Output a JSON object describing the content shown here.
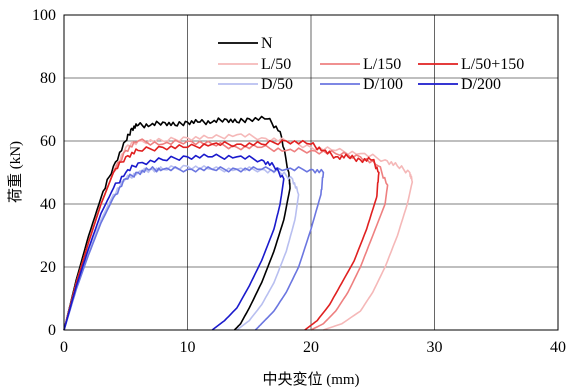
{
  "chart_data": {
    "type": "line",
    "xlabel": "中央変位 (mm)",
    "ylabel": "荷重 (kN)",
    "xlim": [
      0,
      40
    ],
    "ylim": [
      0,
      100
    ],
    "xticks": [
      0,
      10,
      20,
      30,
      40
    ],
    "yticks": [
      0,
      20,
      40,
      60,
      80,
      100
    ],
    "grid": true,
    "legend_position": "top-right",
    "series": [
      {
        "name": "N",
        "color": "#000000",
        "x": [
          0,
          1,
          2,
          3,
          4,
          5,
          5.5,
          6,
          7,
          8,
          9,
          10,
          11,
          12,
          13,
          14,
          15,
          16.5,
          17.5,
          18.2,
          18.3,
          17.8,
          17.0,
          16.0,
          15.0,
          14.3,
          13.8
        ],
        "y": [
          0,
          16,
          30,
          42,
          52,
          60,
          64,
          65,
          65,
          66,
          65,
          66,
          66,
          66,
          67,
          66,
          67,
          67,
          63,
          50,
          45,
          35,
          25,
          15,
          7,
          2,
          0
        ]
      },
      {
        "name": "L/50",
        "color": "#f5b8b8",
        "x": [
          0,
          1,
          2,
          3,
          4,
          5,
          6,
          8,
          10,
          12,
          14,
          16,
          18,
          20,
          22,
          24,
          26,
          27,
          28,
          28.2,
          27.8,
          27.0,
          26.0,
          25.0,
          24.0,
          22.5,
          21.0
        ],
        "y": [
          0,
          15,
          28,
          40,
          50,
          58,
          60,
          60,
          61,
          61,
          62,
          61,
          60,
          58,
          57,
          56,
          54,
          52,
          50,
          47,
          40,
          30,
          20,
          12,
          6,
          2,
          0
        ]
      },
      {
        "name": "L/150",
        "color": "#ee8080",
        "x": [
          0,
          1,
          2,
          3,
          4,
          5,
          6,
          8,
          10,
          12,
          14,
          16,
          18,
          20,
          22,
          24,
          25.5,
          26.2,
          26.0,
          25.0,
          24.0,
          23.0,
          22.0,
          21.0,
          20.0
        ],
        "y": [
          0,
          15,
          28,
          40,
          50,
          57,
          60,
          59,
          60,
          59,
          58,
          58,
          57,
          57,
          56,
          55,
          52,
          46,
          40,
          30,
          20,
          12,
          6,
          2,
          0
        ]
      },
      {
        "name": "L/50+150",
        "color": "#e02020",
        "x": [
          0,
          1,
          2,
          3,
          4,
          5,
          6,
          8,
          10,
          12,
          14,
          16,
          18,
          20,
          21,
          22,
          23,
          24,
          25,
          25.5,
          25.3,
          24.5,
          23.5,
          22.5,
          21.5,
          20.5,
          19.5
        ],
        "y": [
          0,
          15,
          28,
          40,
          50,
          55,
          57,
          58,
          58,
          59,
          59,
          59,
          60,
          59,
          57,
          55,
          55,
          54,
          54,
          50,
          42,
          32,
          22,
          15,
          8,
          3,
          0
        ]
      },
      {
        "name": "D/50",
        "color": "#b8bff0",
        "x": [
          0,
          1,
          2,
          3,
          4,
          5,
          6,
          7,
          8,
          10,
          12,
          14,
          16,
          17.5,
          18.5,
          19.0,
          18.7,
          18.0,
          17.0,
          16.0,
          15.0,
          14.0
        ],
        "y": [
          0,
          13,
          25,
          35,
          43,
          48,
          50,
          51,
          51,
          52,
          51,
          51,
          51,
          50,
          48,
          43,
          35,
          25,
          15,
          8,
          3,
          0
        ]
      },
      {
        "name": "D/100",
        "color": "#6b76e0",
        "x": [
          0,
          1,
          2,
          3,
          4,
          5,
          6,
          7,
          8,
          10,
          12,
          14,
          16,
          18,
          20,
          21.0,
          20.8,
          20.0,
          19.0,
          18.0,
          17.0,
          16.0,
          15.5
        ],
        "y": [
          0,
          13,
          24,
          34,
          42,
          48,
          50,
          51,
          51,
          51,
          51,
          51,
          51,
          51,
          51,
          50,
          43,
          32,
          20,
          12,
          6,
          2,
          0
        ]
      },
      {
        "name": "D/200",
        "color": "#1a1acc",
        "x": [
          0,
          1,
          2,
          3,
          4,
          5,
          6,
          8,
          10,
          12,
          14,
          16,
          17.0,
          17.8,
          17.5,
          17.0,
          16.0,
          15.0,
          14.0,
          13.0,
          12.0
        ],
        "y": [
          0,
          14,
          26,
          37,
          45,
          50,
          53,
          54,
          55,
          55,
          55,
          54,
          52,
          48,
          40,
          32,
          22,
          14,
          7,
          3,
          0
        ]
      }
    ]
  }
}
